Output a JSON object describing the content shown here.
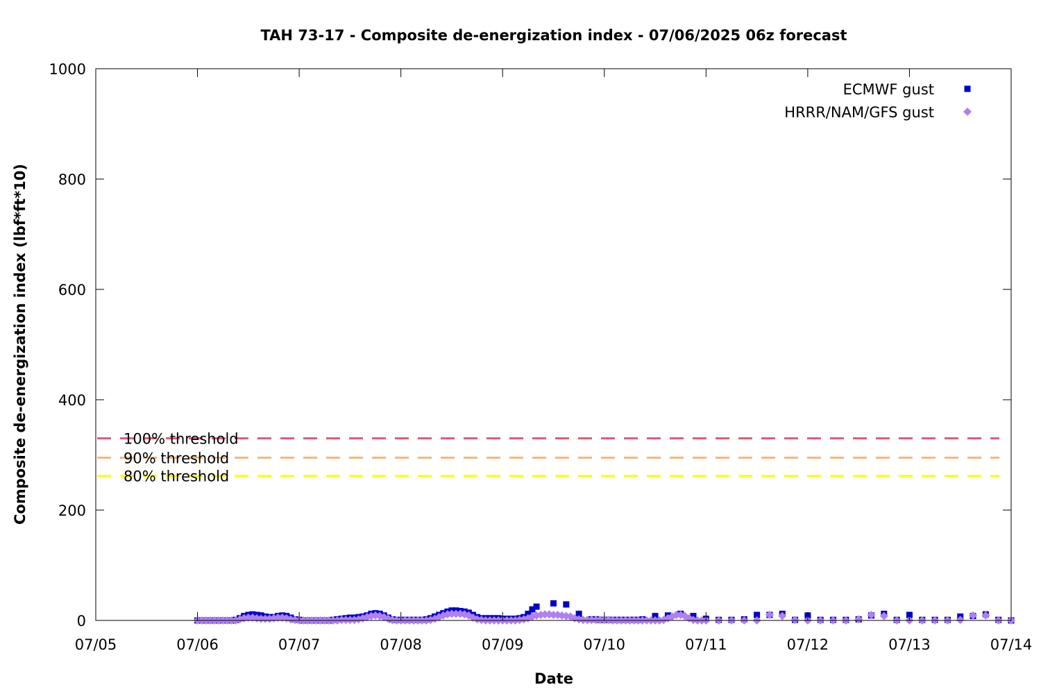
{
  "chart_data": {
    "type": "scatter",
    "title": "TAH 73-17 - Composite de-energization index - 07/06/2025 06z forecast",
    "xlabel": "Date",
    "ylabel": "Composite de-energization index (lbf*ft*10)",
    "x_ticks": [
      "07/05",
      "07/06",
      "07/07",
      "07/08",
      "07/09",
      "07/10",
      "07/11",
      "07/12",
      "07/13",
      "07/14"
    ],
    "y_ticks": [
      "0",
      "200",
      "400",
      "600",
      "800",
      "1000"
    ],
    "xlim": [
      "07/05",
      "07/14"
    ],
    "ylim": [
      0,
      1000
    ],
    "grid": false,
    "legend_position": "top-right",
    "thresholds": [
      {
        "label": "100% threshold",
        "value": 330,
        "color": "#e05a78"
      },
      {
        "label": "90% threshold",
        "value": 295,
        "color": "#f5b77a"
      },
      {
        "label": "80% threshold",
        "value": 262,
        "color": "#ffff00"
      }
    ],
    "series": [
      {
        "name": "ECMWF gust",
        "color": "#0000cc",
        "marker": "square",
        "points": [
          [
            "07/06 00:00",
            0
          ],
          [
            "07/06 01:00",
            0
          ],
          [
            "07/06 02:00",
            0
          ],
          [
            "07/06 03:00",
            0
          ],
          [
            "07/06 04:00",
            0
          ],
          [
            "07/06 05:00",
            0
          ],
          [
            "07/06 06:00",
            0
          ],
          [
            "07/06 07:00",
            0
          ],
          [
            "07/06 08:00",
            0
          ],
          [
            "07/06 09:00",
            1
          ],
          [
            "07/06 10:00",
            4
          ],
          [
            "07/06 11:00",
            8
          ],
          [
            "07/06 12:00",
            10
          ],
          [
            "07/06 13:00",
            11
          ],
          [
            "07/06 14:00",
            10
          ],
          [
            "07/06 15:00",
            9
          ],
          [
            "07/06 16:00",
            7
          ],
          [
            "07/06 17:00",
            6
          ],
          [
            "07/06 18:00",
            6
          ],
          [
            "07/06 19:00",
            8
          ],
          [
            "07/06 20:00",
            9
          ],
          [
            "07/06 21:00",
            8
          ],
          [
            "07/06 22:00",
            5
          ],
          [
            "07/06 23:00",
            2
          ],
          [
            "07/07 00:00",
            1
          ],
          [
            "07/07 01:00",
            0
          ],
          [
            "07/07 02:00",
            0
          ],
          [
            "07/07 03:00",
            0
          ],
          [
            "07/07 04:00",
            0
          ],
          [
            "07/07 05:00",
            0
          ],
          [
            "07/07 06:00",
            0
          ],
          [
            "07/07 07:00",
            0
          ],
          [
            "07/07 08:00",
            1
          ],
          [
            "07/07 09:00",
            2
          ],
          [
            "07/07 10:00",
            3
          ],
          [
            "07/07 11:00",
            4
          ],
          [
            "07/07 12:00",
            5
          ],
          [
            "07/07 13:00",
            5
          ],
          [
            "07/07 14:00",
            6
          ],
          [
            "07/07 15:00",
            7
          ],
          [
            "07/07 16:00",
            9
          ],
          [
            "07/07 17:00",
            12
          ],
          [
            "07/07 18:00",
            13
          ],
          [
            "07/07 19:00",
            12
          ],
          [
            "07/07 20:00",
            9
          ],
          [
            "07/07 21:00",
            5
          ],
          [
            "07/07 22:00",
            2
          ],
          [
            "07/07 23:00",
            1
          ],
          [
            "07/08 00:00",
            1
          ],
          [
            "07/08 01:00",
            1
          ],
          [
            "07/08 02:00",
            1
          ],
          [
            "07/08 03:00",
            1
          ],
          [
            "07/08 04:00",
            1
          ],
          [
            "07/08 05:00",
            1
          ],
          [
            "07/08 06:00",
            2
          ],
          [
            "07/08 07:00",
            4
          ],
          [
            "07/08 08:00",
            7
          ],
          [
            "07/08 09:00",
            10
          ],
          [
            "07/08 10:00",
            13
          ],
          [
            "07/08 11:00",
            16
          ],
          [
            "07/08 12:00",
            18
          ],
          [
            "07/08 13:00",
            18
          ],
          [
            "07/08 14:00",
            17
          ],
          [
            "07/08 15:00",
            16
          ],
          [
            "07/08 16:00",
            14
          ],
          [
            "07/08 17:00",
            10
          ],
          [
            "07/08 18:00",
            6
          ],
          [
            "07/08 19:00",
            4
          ],
          [
            "07/08 20:00",
            4
          ],
          [
            "07/08 21:00",
            4
          ],
          [
            "07/08 22:00",
            4
          ],
          [
            "07/08 23:00",
            4
          ],
          [
            "07/09 00:00",
            3
          ],
          [
            "07/09 01:00",
            3
          ],
          [
            "07/09 02:00",
            3
          ],
          [
            "07/09 03:00",
            3
          ],
          [
            "07/09 04:00",
            4
          ],
          [
            "07/09 05:00",
            6
          ],
          [
            "07/09 06:00",
            12
          ],
          [
            "07/09 07:00",
            20
          ],
          [
            "07/09 08:00",
            25
          ],
          [
            "07/09 12:00",
            31
          ],
          [
            "07/09 15:00",
            29
          ],
          [
            "07/09 18:00",
            12
          ],
          [
            "07/09 21:00",
            2
          ],
          [
            "07/09 22:00",
            2
          ],
          [
            "07/09 23:00",
            1
          ],
          [
            "07/10 00:00",
            1
          ],
          [
            "07/10 01:00",
            1
          ],
          [
            "07/10 02:00",
            1
          ],
          [
            "07/10 03:00",
            1
          ],
          [
            "07/10 04:00",
            1
          ],
          [
            "07/10 05:00",
            1
          ],
          [
            "07/10 06:00",
            1
          ],
          [
            "07/10 07:00",
            1
          ],
          [
            "07/10 08:00",
            1
          ],
          [
            "07/10 09:00",
            2
          ],
          [
            "07/10 12:00",
            8
          ],
          [
            "07/10 15:00",
            9
          ],
          [
            "07/10 18:00",
            12
          ],
          [
            "07/10 21:00",
            8
          ],
          [
            "07/11 00:00",
            3
          ],
          [
            "07/11 03:00",
            1
          ],
          [
            "07/11 06:00",
            1
          ],
          [
            "07/11 09:00",
            2
          ],
          [
            "07/11 12:00",
            10
          ],
          [
            "07/11 15:00",
            10
          ],
          [
            "07/11 18:00",
            12
          ],
          [
            "07/11 21:00",
            1
          ],
          [
            "07/12 00:00",
            9
          ],
          [
            "07/12 03:00",
            1
          ],
          [
            "07/12 06:00",
            1
          ],
          [
            "07/12 09:00",
            1
          ],
          [
            "07/12 12:00",
            2
          ],
          [
            "07/12 15:00",
            9
          ],
          [
            "07/12 18:00",
            12
          ],
          [
            "07/12 21:00",
            1
          ],
          [
            "07/13 00:00",
            10
          ],
          [
            "07/13 03:00",
            1
          ],
          [
            "07/13 06:00",
            1
          ],
          [
            "07/13 09:00",
            1
          ],
          [
            "07/13 12:00",
            7
          ],
          [
            "07/13 15:00",
            8
          ],
          [
            "07/13 18:00",
            11
          ],
          [
            "07/13 21:00",
            1
          ],
          [
            "07/14 00:00",
            0
          ]
        ]
      },
      {
        "name": "HRRR/NAM/GFS gust",
        "color": "#b080f0",
        "marker": "diamond",
        "points": [
          [
            "07/06 00:00",
            0
          ],
          [
            "07/06 01:00",
            0
          ],
          [
            "07/06 02:00",
            0
          ],
          [
            "07/06 03:00",
            0
          ],
          [
            "07/06 04:00",
            0
          ],
          [
            "07/06 05:00",
            0
          ],
          [
            "07/06 06:00",
            0
          ],
          [
            "07/06 07:00",
            0
          ],
          [
            "07/06 08:00",
            0
          ],
          [
            "07/06 09:00",
            0
          ],
          [
            "07/06 10:00",
            2
          ],
          [
            "07/06 11:00",
            4
          ],
          [
            "07/06 12:00",
            5
          ],
          [
            "07/06 13:00",
            5
          ],
          [
            "07/06 14:00",
            4
          ],
          [
            "07/06 15:00",
            3
          ],
          [
            "07/06 16:00",
            3
          ],
          [
            "07/06 17:00",
            3
          ],
          [
            "07/06 18:00",
            4
          ],
          [
            "07/06 19:00",
            5
          ],
          [
            "07/06 20:00",
            5
          ],
          [
            "07/06 21:00",
            4
          ],
          [
            "07/06 22:00",
            2
          ],
          [
            "07/06 23:00",
            1
          ],
          [
            "07/07 00:00",
            0
          ],
          [
            "07/07 01:00",
            0
          ],
          [
            "07/07 02:00",
            0
          ],
          [
            "07/07 03:00",
            0
          ],
          [
            "07/07 04:00",
            0
          ],
          [
            "07/07 05:00",
            0
          ],
          [
            "07/07 06:00",
            0
          ],
          [
            "07/07 07:00",
            0
          ],
          [
            "07/07 08:00",
            0
          ],
          [
            "07/07 09:00",
            0
          ],
          [
            "07/07 10:00",
            1
          ],
          [
            "07/07 11:00",
            1
          ],
          [
            "07/07 12:00",
            1
          ],
          [
            "07/07 13:00",
            1
          ],
          [
            "07/07 14:00",
            2
          ],
          [
            "07/07 15:00",
            4
          ],
          [
            "07/07 16:00",
            6
          ],
          [
            "07/07 17:00",
            8
          ],
          [
            "07/07 18:00",
            9
          ],
          [
            "07/07 19:00",
            8
          ],
          [
            "07/07 20:00",
            6
          ],
          [
            "07/07 21:00",
            3
          ],
          [
            "07/07 22:00",
            1
          ],
          [
            "07/07 23:00",
            0
          ],
          [
            "07/08 00:00",
            0
          ],
          [
            "07/08 01:00",
            0
          ],
          [
            "07/08 02:00",
            0
          ],
          [
            "07/08 03:00",
            0
          ],
          [
            "07/08 04:00",
            0
          ],
          [
            "07/08 05:00",
            0
          ],
          [
            "07/08 06:00",
            0
          ],
          [
            "07/08 07:00",
            1
          ],
          [
            "07/08 08:00",
            3
          ],
          [
            "07/08 09:00",
            6
          ],
          [
            "07/08 10:00",
            9
          ],
          [
            "07/08 11:00",
            11
          ],
          [
            "07/08 12:00",
            12
          ],
          [
            "07/08 13:00",
            12
          ],
          [
            "07/08 14:00",
            12
          ],
          [
            "07/08 15:00",
            11
          ],
          [
            "07/08 16:00",
            9
          ],
          [
            "07/08 17:00",
            5
          ],
          [
            "07/08 18:00",
            2
          ],
          [
            "07/08 19:00",
            1
          ],
          [
            "07/08 20:00",
            0
          ],
          [
            "07/08 21:00",
            0
          ],
          [
            "07/08 22:00",
            0
          ],
          [
            "07/08 23:00",
            0
          ],
          [
            "07/09 00:00",
            0
          ],
          [
            "07/09 01:00",
            0
          ],
          [
            "07/09 02:00",
            0
          ],
          [
            "07/09 03:00",
            0
          ],
          [
            "07/09 04:00",
            1
          ],
          [
            "07/09 05:00",
            2
          ],
          [
            "07/09 06:00",
            4
          ],
          [
            "07/09 07:00",
            7
          ],
          [
            "07/09 08:00",
            9
          ],
          [
            "07/09 09:00",
            10
          ],
          [
            "07/09 10:00",
            11
          ],
          [
            "07/09 11:00",
            11
          ],
          [
            "07/09 12:00",
            10
          ],
          [
            "07/09 13:00",
            10
          ],
          [
            "07/09 14:00",
            9
          ],
          [
            "07/09 15:00",
            8
          ],
          [
            "07/09 16:00",
            7
          ],
          [
            "07/09 17:00",
            4
          ],
          [
            "07/09 18:00",
            2
          ],
          [
            "07/09 19:00",
            1
          ],
          [
            "07/09 20:00",
            1
          ],
          [
            "07/09 21:00",
            1
          ],
          [
            "07/09 22:00",
            1
          ],
          [
            "07/09 23:00",
            1
          ],
          [
            "07/10 00:00",
            1
          ],
          [
            "07/10 01:00",
            1
          ],
          [
            "07/10 02:00",
            0
          ],
          [
            "07/10 03:00",
            0
          ],
          [
            "07/10 04:00",
            0
          ],
          [
            "07/10 05:00",
            0
          ],
          [
            "07/10 06:00",
            0
          ],
          [
            "07/10 07:00",
            0
          ],
          [
            "07/10 08:00",
            0
          ],
          [
            "07/10 09:00",
            0
          ],
          [
            "07/10 10:00",
            0
          ],
          [
            "07/10 11:00",
            0
          ],
          [
            "07/10 12:00",
            0
          ],
          [
            "07/10 13:00",
            0
          ],
          [
            "07/10 14:00",
            1
          ],
          [
            "07/10 15:00",
            4
          ],
          [
            "07/10 16:00",
            7
          ],
          [
            "07/10 17:00",
            10
          ],
          [
            "07/10 18:00",
            10
          ],
          [
            "07/10 19:00",
            8
          ],
          [
            "07/10 20:00",
            4
          ],
          [
            "07/10 21:00",
            1
          ],
          [
            "07/10 22:00",
            0
          ],
          [
            "07/10 23:00",
            0
          ],
          [
            "07/11 00:00",
            0
          ],
          [
            "07/11 03:00",
            0
          ],
          [
            "07/11 06:00",
            0
          ],
          [
            "07/11 09:00",
            0
          ],
          [
            "07/11 12:00",
            0
          ],
          [
            "07/11 15:00",
            10
          ],
          [
            "07/11 18:00",
            8
          ],
          [
            "07/11 21:00",
            1
          ],
          [
            "07/12 00:00",
            0
          ],
          [
            "07/12 03:00",
            0
          ],
          [
            "07/12 06:00",
            0
          ],
          [
            "07/12 09:00",
            0
          ],
          [
            "07/12 12:00",
            2
          ],
          [
            "07/12 15:00",
            10
          ],
          [
            "07/12 18:00",
            8
          ],
          [
            "07/12 21:00",
            0
          ],
          [
            "07/13 00:00",
            0
          ],
          [
            "07/13 03:00",
            0
          ],
          [
            "07/13 06:00",
            0
          ],
          [
            "07/13 09:00",
            0
          ],
          [
            "07/13 12:00",
            1
          ],
          [
            "07/13 15:00",
            9
          ],
          [
            "07/13 18:00",
            9
          ],
          [
            "07/13 21:00",
            0
          ],
          [
            "07/14 00:00",
            0
          ]
        ]
      }
    ]
  }
}
